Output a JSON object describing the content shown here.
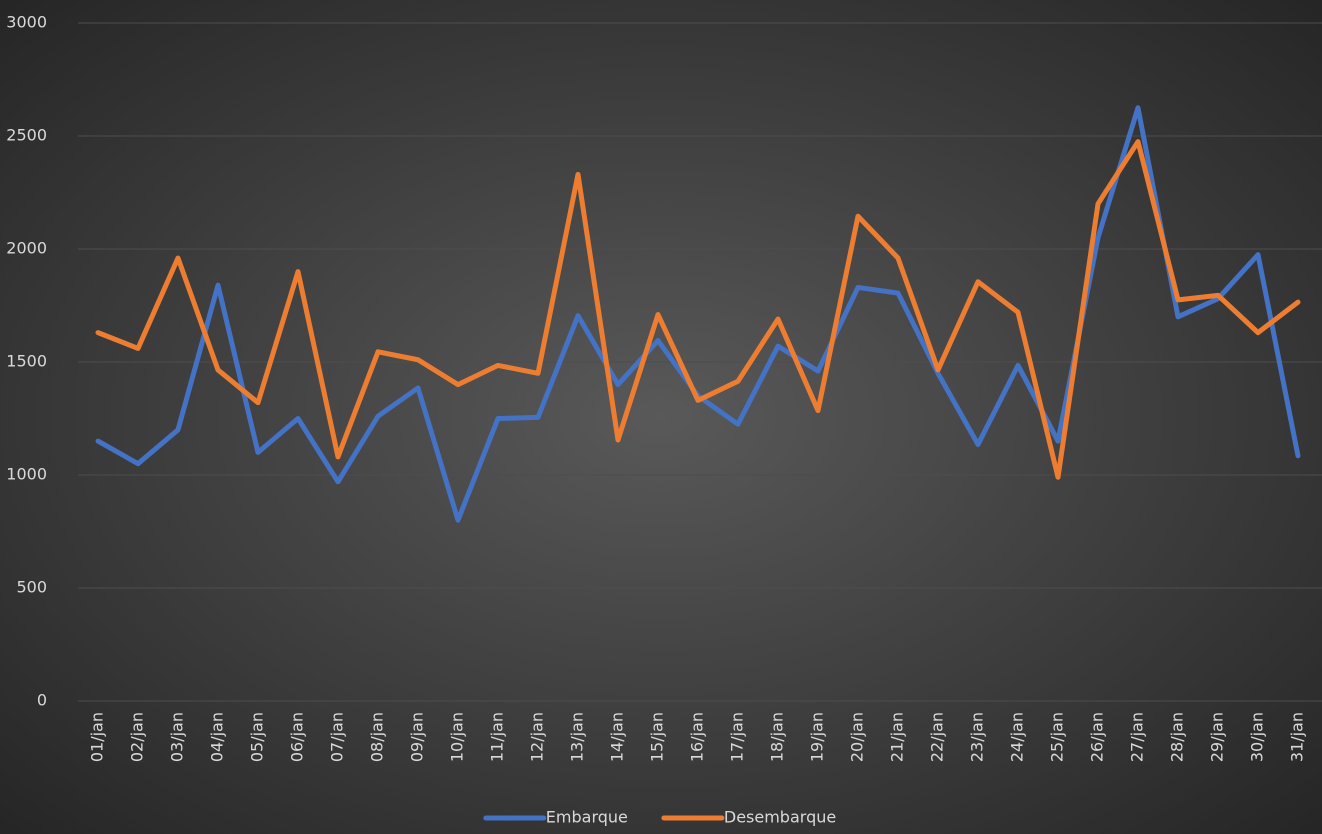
{
  "chart_data": {
    "type": "line",
    "categories": [
      "01/jan",
      "02/jan",
      "03/jan",
      "04/jan",
      "05/jan",
      "06/jan",
      "07/jan",
      "08/jan",
      "09/jan",
      "10/jan",
      "11/jan",
      "12/jan",
      "13/jan",
      "14/jan",
      "15/jan",
      "16/jan",
      "17/jan",
      "18/jan",
      "19/jan",
      "20/jan",
      "21/jan",
      "22/jan",
      "23/jan",
      "24/jan",
      "25/jan",
      "26/jan",
      "27/jan",
      "28/jan",
      "29/jan",
      "30/jan",
      "31/jan"
    ],
    "series": [
      {
        "name": "Embarque",
        "color": "#4472c4",
        "values": [
          1150,
          1050,
          1200,
          1840,
          1100,
          1250,
          970,
          1260,
          1385,
          800,
          1250,
          1255,
          1705,
          1400,
          1595,
          1350,
          1225,
          1570,
          1460,
          1830,
          1805,
          1450,
          1135,
          1485,
          1150,
          2050,
          2625,
          1700,
          1780,
          1975,
          1085
        ]
      },
      {
        "name": "Desembarque",
        "color": "#ed7d31",
        "values": [
          1630,
          1560,
          1960,
          1465,
          1320,
          1900,
          1080,
          1545,
          1510,
          1400,
          1485,
          1450,
          2330,
          1155,
          1710,
          1330,
          1415,
          1690,
          1285,
          2145,
          1960,
          1465,
          1855,
          1720,
          990,
          2200,
          2475,
          1775,
          1795,
          1630,
          1765
        ]
      }
    ],
    "ylim": [
      0,
      3000
    ],
    "yticks": [
      0,
      500,
      1000,
      1500,
      2000,
      2500,
      3000
    ],
    "grid": true,
    "legend": "bottom"
  }
}
